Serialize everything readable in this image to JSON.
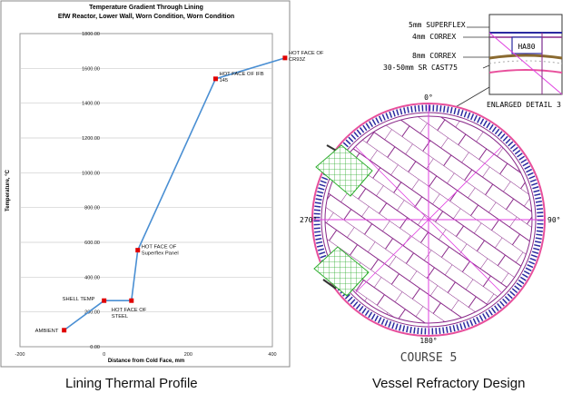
{
  "chart_data": {
    "type": "line",
    "title": "Temperature Gradient Through Lining",
    "subtitle": "EfW Reactor, Lower Wall, Worn Condition, Worn Condition",
    "xlabel": "Distance from Cold Face, mm",
    "ylabel": "Temperature, °C",
    "xlim": [
      -200,
      400
    ],
    "ylim": [
      0,
      1800
    ],
    "x_ticks": [
      "-200",
      "0",
      "200",
      "400"
    ],
    "y_ticks": [
      "0.00",
      "200.00",
      "400.00",
      "600.00",
      "800.00",
      "1000.00",
      "1200.00",
      "1400.00",
      "1600.00",
      "1800.00"
    ],
    "grid": "horizontal",
    "series": [
      {
        "color": "#4a8fd3",
        "marker_color": "#e00000",
        "points": [
          {
            "x": -95,
            "y": 95
          },
          {
            "x": 0,
            "y": 265
          },
          {
            "x": 65,
            "y": 265
          },
          {
            "x": 80,
            "y": 555
          },
          {
            "x": 265,
            "y": 1540
          },
          {
            "x": 430,
            "y": 1660
          }
        ]
      }
    ],
    "annotations": [
      {
        "lines": [
          "AMBIENT"
        ],
        "x": -95,
        "y": 95
      },
      {
        "lines": [
          "SHELL TEMP"
        ],
        "x": 0,
        "y": 265
      },
      {
        "lines": [
          "HOT FACE OF",
          "STEEL"
        ],
        "x": 65,
        "y": 265
      },
      {
        "lines": [
          "HOT FACE OF",
          "Superflex Panel"
        ],
        "x": 80,
        "y": 555
      },
      {
        "lines": [
          "HOT FACE OF IFB",
          "145"
        ],
        "x": 265,
        "y": 1540
      },
      {
        "lines": [
          "HOT FACE OF",
          "CR93Z"
        ],
        "x": 430,
        "y": 1660
      }
    ]
  },
  "design": {
    "detail_labels": [
      "5mm SUPERFLEX",
      "4mm CORREX",
      "8mm CORREX",
      "30-50mm SR CAST75"
    ],
    "detail_tag": "HA80",
    "detail_caption": "ENLARGED DETAIL 3",
    "angles": {
      "top": "0°",
      "right": "90°",
      "bottom": "180°",
      "left": "270°"
    },
    "course_label": "COURSE 5",
    "colors": {
      "shell": "#e8509c",
      "brick": "#8a2a8a",
      "axis": "#e040e0",
      "nozzle": "#2fae2f",
      "lining": "#2a2aa0"
    }
  },
  "captions": {
    "left": "Lining Thermal  Profile",
    "right": "Vessel Refractory  Design"
  }
}
